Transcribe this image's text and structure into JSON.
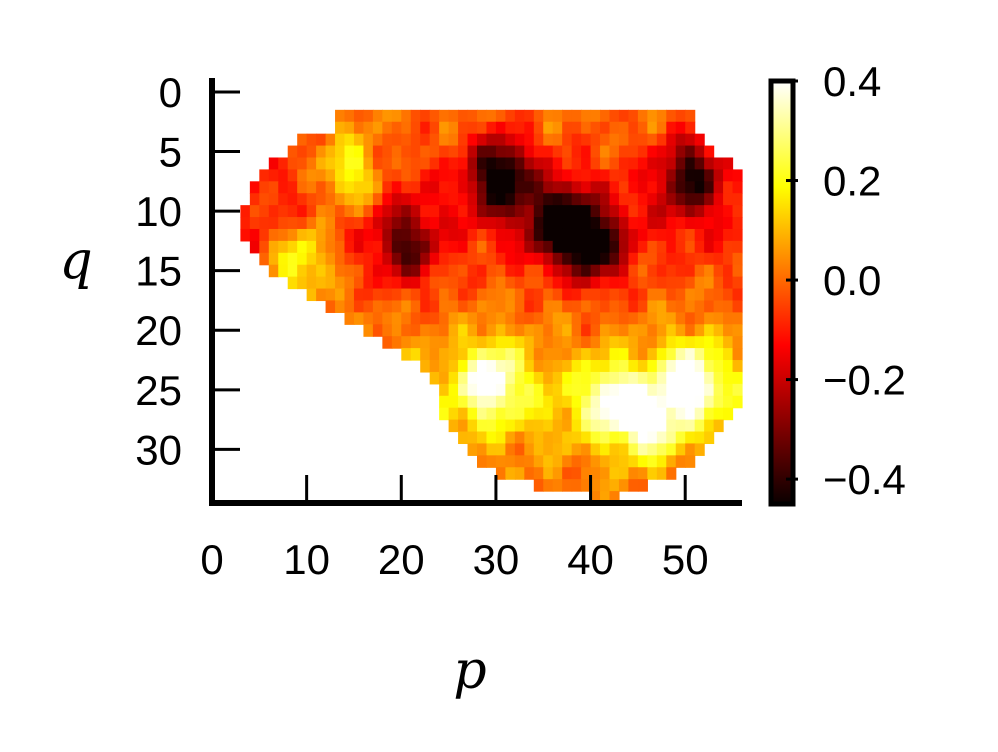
{
  "chart_data": {
    "type": "heatmap",
    "title": "",
    "xlabel": "p",
    "ylabel": "q",
    "xlim": [
      0,
      56
    ],
    "ylim": [
      34.5,
      0
    ],
    "y_axis_inverted": true,
    "grid": false,
    "x_ticks": [
      "0",
      "10",
      "20",
      "30",
      "40",
      "50"
    ],
    "y_ticks": [
      "0",
      "5",
      "10",
      "15",
      "20",
      "25",
      "30"
    ],
    "colormap": "hot",
    "colorbar": {
      "range": [
        -0.45,
        0.4
      ],
      "ticks": [
        "0.4",
        "0.2",
        "0.0",
        "−0.2",
        "−0.4"
      ],
      "tick_values": [
        0.4,
        0.2,
        0.0,
        -0.2,
        -0.4
      ],
      "placement": "right"
    },
    "grid_size": {
      "p": 56,
      "q": 35
    },
    "region_rows": [
      [],
      [],
      [
        13,
        50
      ],
      [
        13,
        50
      ],
      [
        9,
        51
      ],
      [
        8,
        52
      ],
      [
        6,
        54
      ],
      [
        5,
        55
      ],
      [
        4,
        55
      ],
      [
        4,
        55
      ],
      [
        3,
        55
      ],
      [
        3,
        55
      ],
      [
        3,
        55
      ],
      [
        4,
        55
      ],
      [
        5,
        55
      ],
      [
        6,
        55
      ],
      [
        8,
        55
      ],
      [
        10,
        55
      ],
      [
        12,
        55
      ],
      [
        14,
        55
      ],
      [
        16,
        55
      ],
      [
        18,
        55
      ],
      [
        20,
        55
      ],
      [
        22,
        55
      ],
      [
        23,
        55
      ],
      [
        24,
        55
      ],
      [
        24,
        55
      ],
      [
        24,
        54
      ],
      [
        25,
        53
      ],
      [
        26,
        52
      ],
      [
        27,
        51
      ],
      [
        28,
        50
      ],
      [
        30,
        48
      ],
      [
        34,
        45
      ],
      [
        40,
        42
      ]
    ],
    "value_features": [
      {
        "p": 14,
        "q": 7,
        "value": 0.3
      },
      {
        "p": 9,
        "q": 14,
        "value": 0.28
      },
      {
        "p": 30,
        "q": 7,
        "value": -0.45
      },
      {
        "p": 36,
        "q": 11,
        "value": -0.43
      },
      {
        "p": 40,
        "q": 13,
        "value": -0.38
      },
      {
        "p": 50,
        "q": 7,
        "value": -0.34
      },
      {
        "p": 20,
        "q": 13,
        "value": -0.28
      },
      {
        "p": 29,
        "q": 24,
        "value": 0.36
      },
      {
        "p": 42,
        "q": 26,
        "value": 0.33
      },
      {
        "p": 50,
        "q": 24,
        "value": 0.4
      },
      {
        "p": 46,
        "q": 28,
        "value": 0.3
      }
    ]
  }
}
